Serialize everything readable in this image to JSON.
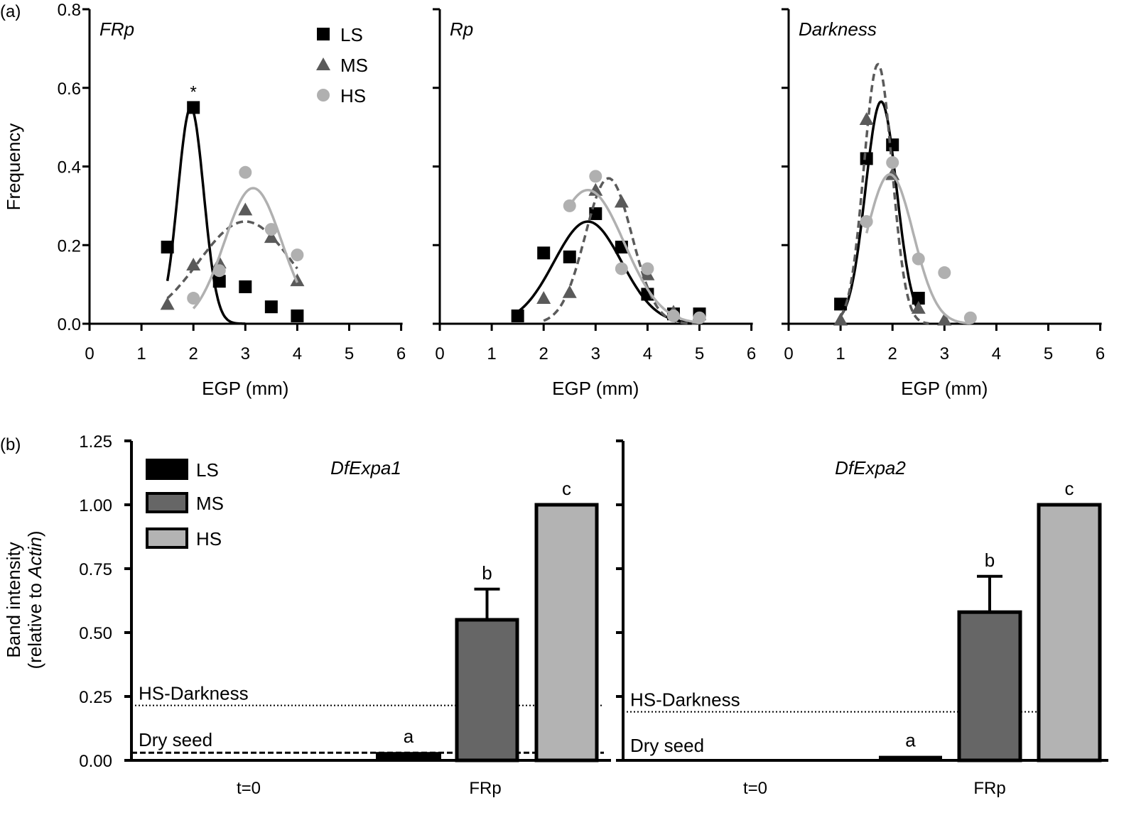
{
  "chart_data": [
    {
      "type": "scatter",
      "panel_label": "(a)",
      "title": "FRp",
      "xlabel": "EGP (mm)",
      "ylabel": "Frequency",
      "xlim": [
        0,
        6
      ],
      "ylim": [
        0,
        0.8
      ],
      "xticks": [
        "0",
        "1",
        "2",
        "3",
        "4",
        "5",
        "6"
      ],
      "yticks": [
        "0.0",
        "0.2",
        "0.4",
        "0.6",
        "0.8"
      ],
      "legend": [
        "LS",
        "MS",
        "HS"
      ],
      "legend_placement": "top-right",
      "annotations": [
        {
          "text": "*",
          "x": 2,
          "y": 0.55
        }
      ],
      "series": [
        {
          "name": "LS",
          "marker": "square",
          "color": "#000000",
          "line": "solid",
          "x": [
            1.5,
            2,
            2.5,
            3,
            3.5,
            4
          ],
          "y": [
            0.195,
            0.55,
            0.108,
            0.094,
            0.043,
            0.02
          ],
          "fit": {
            "peak": 0.55,
            "center": 1.95,
            "sigma": 0.25,
            "range": [
              1.5,
              3.0
            ]
          }
        },
        {
          "name": "MS",
          "marker": "triangle",
          "color": "#5a5a5a",
          "line": "dashed",
          "x": [
            1.5,
            2,
            2.5,
            3,
            3.5,
            4
          ],
          "y": [
            0.05,
            0.15,
            0.155,
            0.29,
            0.22,
            0.11
          ],
          "fit": {
            "peak": 0.26,
            "center": 3.0,
            "sigma": 0.9,
            "range": [
              1.5,
              4.0
            ]
          }
        },
        {
          "name": "HS",
          "marker": "circle",
          "color": "#b0b0b0",
          "line": "solid",
          "x": [
            2,
            2.5,
            3,
            3.5,
            4
          ],
          "y": [
            0.065,
            0.135,
            0.385,
            0.24,
            0.175
          ],
          "fit": {
            "peak": 0.345,
            "center": 3.15,
            "sigma": 0.55,
            "range": [
              2.0,
              4.0
            ]
          }
        }
      ]
    },
    {
      "type": "scatter",
      "title": "Rp",
      "xlabel": "EGP (mm)",
      "xlim": [
        0,
        6
      ],
      "ylim": [
        0,
        0.8
      ],
      "xticks": [
        "0",
        "1",
        "2",
        "3",
        "4",
        "5",
        "6"
      ],
      "series": [
        {
          "name": "LS",
          "marker": "square",
          "color": "#000000",
          "line": "solid",
          "x": [
            1.5,
            2,
            2.5,
            3,
            3.5,
            4,
            4.5,
            5
          ],
          "y": [
            0.02,
            0.18,
            0.17,
            0.28,
            0.195,
            0.075,
            0.025,
            0.025
          ],
          "fit": {
            "peak": 0.26,
            "center": 2.85,
            "sigma": 0.65,
            "range": [
              1.5,
              5.0
            ]
          }
        },
        {
          "name": "MS",
          "marker": "triangle",
          "color": "#5a5a5a",
          "line": "dashed",
          "x": [
            2,
            2.5,
            3,
            3.5,
            4,
            4.5
          ],
          "y": [
            0.065,
            0.08,
            0.34,
            0.31,
            0.125,
            0.03
          ],
          "fit": {
            "peak": 0.37,
            "center": 3.25,
            "sigma": 0.45,
            "range": [
              2.0,
              5.0
            ]
          }
        },
        {
          "name": "HS",
          "marker": "circle",
          "color": "#b0b0b0",
          "line": "solid",
          "x": [
            2.5,
            3,
            3.5,
            4,
            4.5,
            5
          ],
          "y": [
            0.3,
            0.375,
            0.14,
            0.14,
            0.02,
            0.015
          ],
          "fit": {
            "peak": 0.34,
            "center": 2.85,
            "sigma": 0.7,
            "range": [
              2.5,
              5.0
            ]
          }
        }
      ]
    },
    {
      "type": "scatter",
      "title": "Darkness",
      "xlabel": "EGP (mm)",
      "xlim": [
        0,
        6
      ],
      "ylim": [
        0,
        0.8
      ],
      "xticks": [
        "0",
        "1",
        "2",
        "3",
        "4",
        "5",
        "6"
      ],
      "series": [
        {
          "name": "LS",
          "marker": "square",
          "color": "#000000",
          "line": "solid",
          "x": [
            1,
            1.5,
            2,
            2.5
          ],
          "y": [
            0.05,
            0.42,
            0.455,
            0.065
          ],
          "fit": {
            "peak": 0.565,
            "center": 1.78,
            "sigma": 0.3,
            "range": [
              1.0,
              2.5
            ]
          }
        },
        {
          "name": "MS",
          "marker": "triangle",
          "color": "#5a5a5a",
          "line": "dashed",
          "x": [
            1,
            1.5,
            2,
            2.5,
            3
          ],
          "y": [
            0.01,
            0.52,
            0.38,
            0.04,
            0.01
          ],
          "fit": {
            "peak": 0.66,
            "center": 1.72,
            "sigma": 0.27,
            "range": [
              1.0,
              2.7
            ]
          }
        },
        {
          "name": "HS",
          "marker": "circle",
          "color": "#b0b0b0",
          "line": "solid",
          "x": [
            1.5,
            2,
            2.5,
            3,
            3.5
          ],
          "y": [
            0.26,
            0.41,
            0.165,
            0.13,
            0.015
          ],
          "fit": {
            "peak": 0.38,
            "center": 1.95,
            "sigma": 0.45,
            "range": [
              1.5,
              3.5
            ]
          }
        }
      ]
    },
    {
      "type": "bar",
      "panel_label": "(b)",
      "title": "DfExpa1",
      "ylabel_line1": "Band intensity",
      "ylabel_line2_prefix": "(relative to ",
      "ylabel_line2_italic": "Actin",
      "ylabel_line2_suffix": ")",
      "ylim": [
        0,
        1.25
      ],
      "yticks": [
        "0.00",
        "0.25",
        "0.50",
        "0.75",
        "1.00",
        "1.25"
      ],
      "categories": [
        "t=0",
        "FRp"
      ],
      "legend": [
        "LS",
        "MS",
        "HS"
      ],
      "legend_placement": "top-left",
      "series": [
        {
          "name": "LS",
          "color": "#000000",
          "values": [
            0,
            0.03
          ],
          "errors": [
            0,
            0
          ],
          "letters": [
            "",
            "a"
          ]
        },
        {
          "name": "MS",
          "color": "#666666",
          "values": [
            0,
            0.55
          ],
          "errors": [
            0,
            0.12
          ],
          "letters": [
            "",
            "b"
          ]
        },
        {
          "name": "HS",
          "color": "#b3b3b3",
          "values": [
            0,
            1.0
          ],
          "errors": [
            0,
            0
          ],
          "letters": [
            "",
            "c"
          ]
        }
      ],
      "reference_lines": [
        {
          "label": "HS-Darkness",
          "value": 0.215,
          "style": "dotted"
        },
        {
          "label": "Dry seed",
          "value": 0.03,
          "style": "dashed"
        }
      ]
    },
    {
      "type": "bar",
      "title": "DfExpa2",
      "ylim": [
        0,
        1.25
      ],
      "categories": [
        "t=0",
        "FRp"
      ],
      "series": [
        {
          "name": "LS",
          "color": "#000000",
          "values": [
            0,
            0.015
          ],
          "errors": [
            0,
            0
          ],
          "letters": [
            "",
            "a"
          ]
        },
        {
          "name": "MS",
          "color": "#666666",
          "values": [
            0,
            0.58
          ],
          "errors": [
            0,
            0.14
          ],
          "letters": [
            "",
            "b"
          ]
        },
        {
          "name": "HS",
          "color": "#b3b3b3",
          "values": [
            0,
            1.0
          ],
          "errors": [
            0,
            0
          ],
          "letters": [
            "",
            "c"
          ]
        }
      ],
      "reference_lines": [
        {
          "label": "HS-Darkness",
          "value": 0.19,
          "style": "dotted"
        },
        {
          "label": "Dry seed",
          "value": 0,
          "style": "none"
        }
      ]
    }
  ]
}
